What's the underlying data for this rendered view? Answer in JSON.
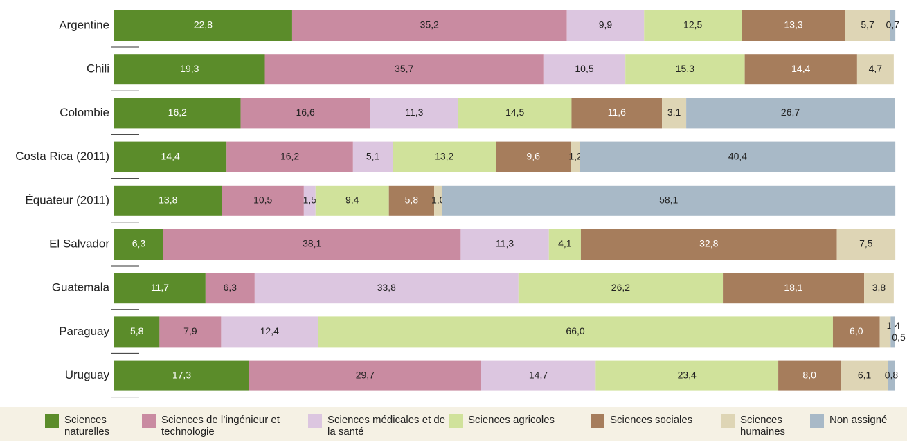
{
  "chart_data": {
    "type": "stacked-bar-horizontal",
    "categories": [
      "Argentine",
      "Chili",
      "Colombie",
      "Costa Rica (2011)",
      "Équateur (2011)",
      "El Salvador",
      "Guatemala",
      "Paraguay",
      "Uruguay"
    ],
    "xlim": [
      0,
      100
    ],
    "series": [
      {
        "name": "Sciences naturelles",
        "color": "#5b8c2a",
        "values": [
          22.8,
          19.3,
          16.2,
          14.4,
          13.8,
          6.3,
          11.7,
          5.8,
          17.3
        ],
        "value_labels": [
          "22,8",
          "19,3",
          "16,2",
          "14,4",
          "13,8",
          "6,3",
          "11,7",
          "5,8",
          "17,3"
        ]
      },
      {
        "name": "Sciences de l’ingénieur et technologie",
        "color": "#c98ba1",
        "values": [
          35.2,
          35.7,
          16.6,
          16.2,
          10.5,
          38.1,
          6.3,
          7.9,
          29.7
        ],
        "value_labels": [
          "35,2",
          "35,7",
          "16,6",
          "16,2",
          "10,5",
          "38,1",
          "6,3",
          "7,9",
          "29,7"
        ]
      },
      {
        "name": "Sciences médicales et de la santé",
        "color": "#dcc6e0",
        "values": [
          9.9,
          10.5,
          11.3,
          5.1,
          1.5,
          11.3,
          33.8,
          12.4,
          14.7
        ],
        "value_labels": [
          "9,9",
          "10,5",
          "11,3",
          "5,1",
          "1,5",
          "11,3",
          "33,8",
          "12,4",
          "14,7"
        ]
      },
      {
        "name": "Sciences agricoles",
        "color": "#d0e29b",
        "values": [
          12.5,
          15.3,
          14.5,
          13.2,
          9.4,
          4.1,
          26.2,
          66.0,
          23.4
        ],
        "value_labels": [
          "12,5",
          "15,3",
          "14,5",
          "13,2",
          "9,4",
          "4,1",
          "26,2",
          "66,0",
          "23,4"
        ]
      },
      {
        "name": "Sciences sociales",
        "color": "#a67d5c",
        "values": [
          13.3,
          14.4,
          11.6,
          9.6,
          5.8,
          32.8,
          18.1,
          6.0,
          8.0
        ],
        "value_labels": [
          "13,3",
          "14,4",
          "11,6",
          "9,6",
          "5,8",
          "32,8",
          "18,1",
          "6,0",
          "8,0"
        ]
      },
      {
        "name": "Sciences humaines",
        "color": "#ded5b5",
        "values": [
          5.7,
          4.7,
          3.1,
          1.2,
          1.0,
          7.5,
          3.8,
          1.4,
          6.1
        ],
        "value_labels": [
          "5,7",
          "4,7",
          "3,1",
          "1,2",
          "1,0",
          "7,5",
          "3,8",
          "1,4",
          "6,1"
        ]
      },
      {
        "name": "Non assigné",
        "color": "#a8b9c7",
        "values": [
          0.7,
          0,
          26.7,
          40.4,
          58.1,
          0,
          0,
          0.5,
          0.8
        ],
        "value_labels": [
          "0,7",
          null,
          "26,7",
          "40,4",
          "58,1",
          null,
          null,
          "0,5",
          "0,8"
        ]
      }
    ]
  }
}
